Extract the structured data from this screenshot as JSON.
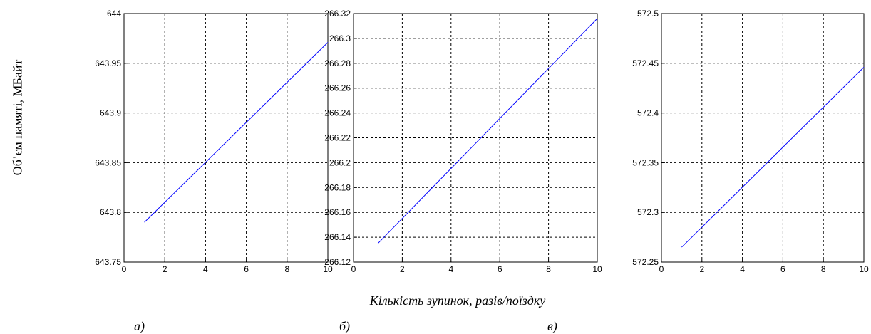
{
  "figure": {
    "ylabel": "Об’єм памяті, МБайт",
    "xlabel": "Кількість зупинок, разів/поїздку",
    "panel_labels": [
      "а)",
      "б)",
      "в)"
    ]
  },
  "chart_data": [
    {
      "type": "line",
      "panel": "а)",
      "x": [
        1,
        10
      ],
      "y": [
        643.79,
        643.971
      ],
      "xlim": [
        0,
        10
      ],
      "ylim": [
        643.75,
        644
      ],
      "xticks": [
        "0",
        "2",
        "4",
        "6",
        "8",
        "10"
      ],
      "yticks": [
        "643.75",
        "643.8",
        "643.85",
        "643.9",
        "643.95",
        "644"
      ],
      "grid": true,
      "line_color": "#0000ff"
    },
    {
      "type": "line",
      "panel": "б)",
      "x": [
        1,
        10
      ],
      "y": [
        266.135,
        266.316
      ],
      "xlim": [
        0,
        10
      ],
      "ylim": [
        266.12,
        266.32
      ],
      "xticks": [
        "0",
        "2",
        "4",
        "6",
        "8",
        "10"
      ],
      "yticks": [
        "266.12",
        "266.14",
        "266.16",
        "266.18",
        "266.2",
        "266.22",
        "266.24",
        "266.26",
        "266.28",
        "266.3",
        "266.32"
      ],
      "grid": true,
      "line_color": "#0000ff"
    },
    {
      "type": "line",
      "panel": "в)",
      "x": [
        1,
        10
      ],
      "y": [
        572.265,
        572.446
      ],
      "xlim": [
        0,
        10
      ],
      "ylim": [
        572.25,
        572.5
      ],
      "xticks": [
        "0",
        "2",
        "4",
        "6",
        "8",
        "10"
      ],
      "yticks": [
        "572.25",
        "572.3",
        "572.35",
        "572.4",
        "572.45",
        "572.5"
      ],
      "grid": true,
      "line_color": "#0000ff"
    }
  ]
}
